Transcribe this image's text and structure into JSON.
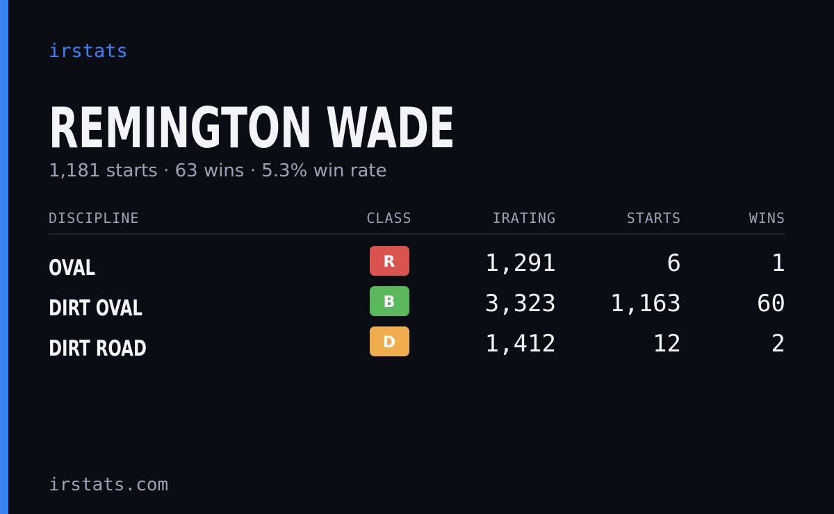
{
  "brand": "irstats",
  "driver": {
    "name": "REMINGTON WADE",
    "summary": "1,181 starts · 63 wins · 5.3% win rate"
  },
  "table": {
    "headers": [
      "DISCIPLINE",
      "CLASS",
      "IRATING",
      "STARTS",
      "WINS"
    ],
    "rows": [
      {
        "discipline": "OVAL",
        "class": "R",
        "class_color": "#d9534f",
        "irating": "1,291",
        "starts": "6",
        "wins": "1"
      },
      {
        "discipline": "DIRT OVAL",
        "class": "B",
        "class_color": "#5cb85c",
        "irating": "3,323",
        "starts": "1,163",
        "wins": "60"
      },
      {
        "discipline": "DIRT ROAD",
        "class": "D",
        "class_color": "#f0ad4e",
        "irating": "1,412",
        "starts": "12",
        "wins": "2"
      }
    ]
  },
  "footer": "irstats.com"
}
